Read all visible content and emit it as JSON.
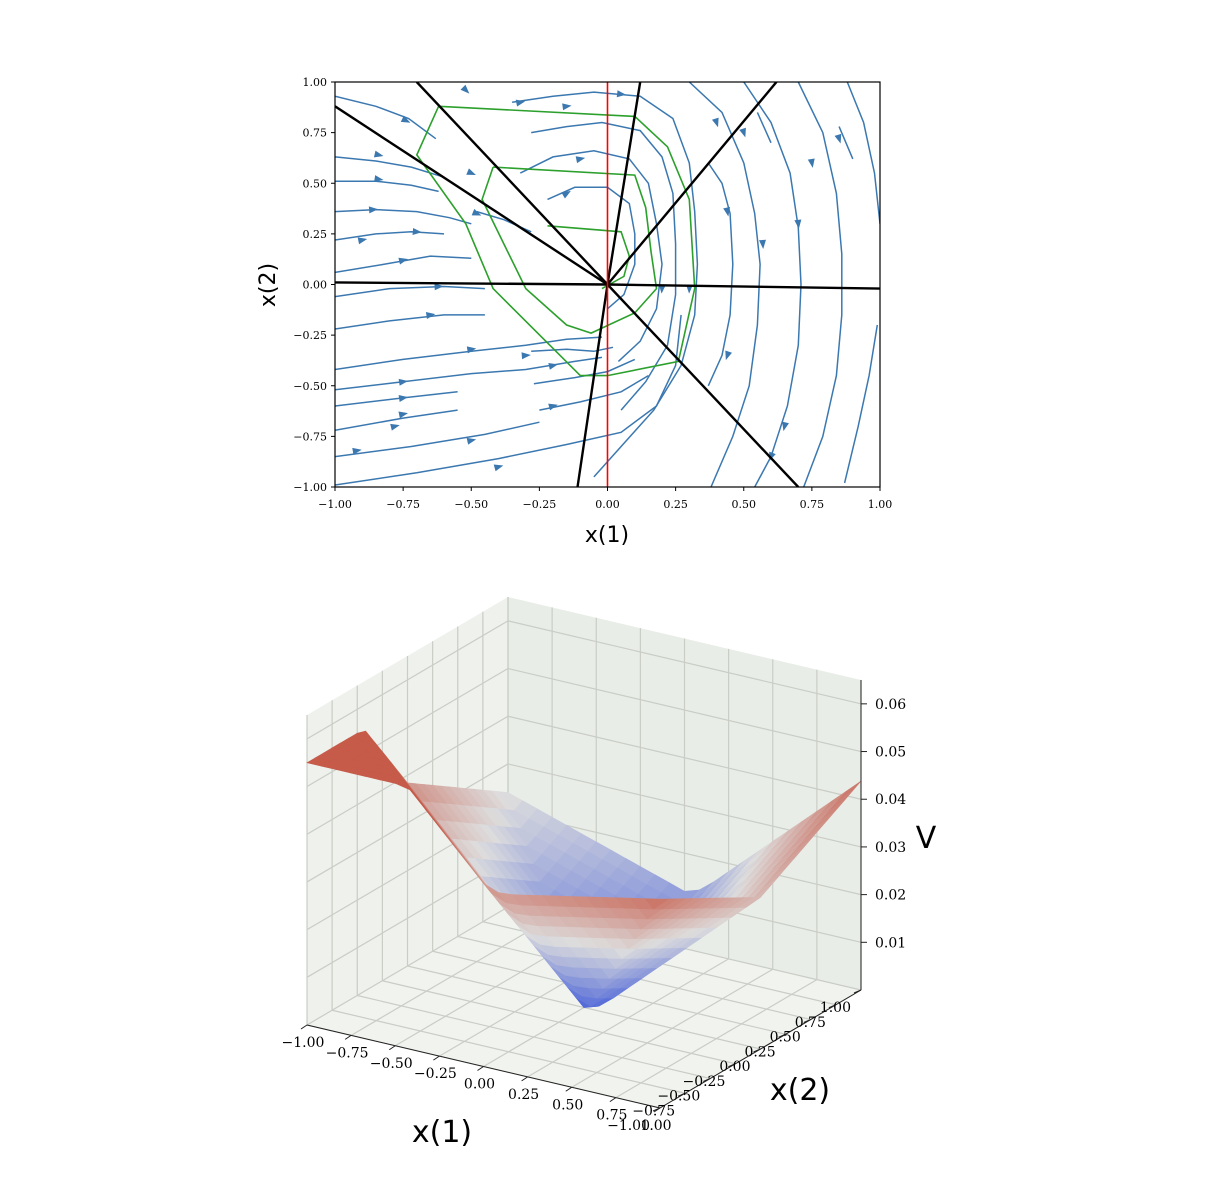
{
  "colors": {
    "streamline": "#3b78b0",
    "region_boundary": "#000000",
    "level_set": "#2ca02c",
    "switching_line": "#ff0000",
    "pane": "#eef1ec",
    "grid": "#c9cdc6",
    "surface_low": "#4a63d8",
    "surface_high": "#c65b4a"
  },
  "chart_data": [
    {
      "type": "streamplot",
      "xlabel": "x(1)",
      "ylabel": "x(2)",
      "xlim": [
        -1.0,
        1.0
      ],
      "ylim": [
        -1.0,
        1.0
      ],
      "xticks": [
        "-1.00",
        "-0.75",
        "-0.50",
        "-0.25",
        "0.00",
        "0.25",
        "0.50",
        "0.75",
        "1.00"
      ],
      "yticks": [
        "-1.00",
        "-0.75",
        "-0.50",
        "-0.25",
        "0.00",
        "0.25",
        "0.50",
        "0.75",
        "1.00"
      ],
      "tick_values": [
        -1.0,
        -0.75,
        -0.5,
        -0.25,
        0.0,
        0.25,
        0.5,
        0.75,
        1.0
      ],
      "grid": false,
      "boundary_rays_endpoints": [
        [
          -1.0,
          0.88
        ],
        [
          -0.7,
          1.0
        ],
        [
          0.12,
          1.0
        ],
        [
          0.62,
          1.0
        ],
        [
          1.0,
          -0.02
        ],
        [
          0.7,
          -1.0
        ],
        [
          -0.11,
          -1.0
        ],
        [
          -1.0,
          0.01
        ]
      ],
      "switching_line_x": 0.0,
      "level_sets": [
        [
          [
            -0.62,
            0.88
          ],
          [
            0.1,
            0.83
          ],
          [
            0.22,
            0.68
          ],
          [
            0.3,
            0.42
          ],
          [
            0.32,
            -0.02
          ],
          [
            0.26,
            -0.38
          ],
          [
            0.0,
            -0.45
          ],
          [
            -0.1,
            -0.45
          ],
          [
            -0.42,
            -0.02
          ],
          [
            -0.52,
            0.3
          ],
          [
            -0.7,
            0.64
          ],
          [
            -0.62,
            0.88
          ]
        ],
        [
          [
            -0.42,
            0.58
          ],
          [
            0.1,
            0.54
          ],
          [
            0.14,
            0.38
          ],
          [
            0.16,
            0.16
          ],
          [
            0.18,
            -0.02
          ],
          [
            0.1,
            -0.14
          ],
          [
            -0.06,
            -0.24
          ],
          [
            -0.15,
            -0.2
          ],
          [
            -0.3,
            -0.02
          ],
          [
            -0.38,
            0.2
          ],
          [
            -0.46,
            0.42
          ],
          [
            -0.42,
            0.58
          ]
        ],
        [
          [
            -0.22,
            0.29
          ],
          [
            0.05,
            0.26
          ],
          [
            0.08,
            0.14
          ],
          [
            0.06,
            0.04
          ],
          [
            -0.02,
            -0.02
          ]
        ]
      ],
      "streamlines": [
        [
          [
            -1.0,
            0.93
          ],
          [
            -0.85,
            0.88
          ],
          [
            -0.73,
            0.82
          ],
          [
            -0.63,
            0.72
          ]
        ],
        [
          [
            -1.0,
            0.63
          ],
          [
            -0.85,
            0.61
          ],
          [
            -0.72,
            0.58
          ],
          [
            -0.6,
            0.53
          ]
        ],
        [
          [
            -1.0,
            0.51
          ],
          [
            -0.85,
            0.51
          ],
          [
            -0.72,
            0.49
          ],
          [
            -0.62,
            0.46
          ]
        ],
        [
          [
            -1.0,
            0.36
          ],
          [
            -0.85,
            0.37
          ],
          [
            -0.7,
            0.36
          ],
          [
            -0.58,
            0.33
          ],
          [
            -0.5,
            0.3
          ]
        ],
        [
          [
            -1.0,
            0.22
          ],
          [
            -0.85,
            0.25
          ],
          [
            -0.72,
            0.26
          ],
          [
            -0.6,
            0.25
          ]
        ],
        [
          [
            -1.0,
            0.06
          ],
          [
            -0.82,
            0.1
          ],
          [
            -0.65,
            0.14
          ],
          [
            -0.5,
            0.13
          ]
        ],
        [
          [
            -1.0,
            -0.06
          ],
          [
            -0.8,
            -0.02
          ],
          [
            -0.6,
            -0.01
          ],
          [
            -0.45,
            -0.02
          ]
        ],
        [
          [
            -1.0,
            -0.22
          ],
          [
            -0.8,
            -0.18
          ],
          [
            -0.6,
            -0.15
          ],
          [
            -0.45,
            -0.15
          ]
        ],
        [
          [
            -1.0,
            -0.42
          ],
          [
            -0.75,
            -0.37
          ],
          [
            -0.5,
            -0.33
          ],
          [
            -0.3,
            -0.3
          ],
          [
            -0.15,
            -0.27
          ],
          [
            -0.02,
            -0.26
          ]
        ],
        [
          [
            -1.0,
            -0.52
          ],
          [
            -0.75,
            -0.48
          ],
          [
            -0.5,
            -0.44
          ],
          [
            -0.3,
            -0.42
          ],
          [
            -0.12,
            -0.38
          ],
          [
            -0.02,
            -0.36
          ]
        ],
        [
          [
            -1.0,
            -0.6
          ],
          [
            -0.75,
            -0.56
          ],
          [
            -0.55,
            -0.53
          ]
        ],
        [
          [
            -1.0,
            -0.72
          ],
          [
            -0.75,
            -0.66
          ],
          [
            -0.55,
            -0.62
          ]
        ],
        [
          [
            -1.0,
            -0.85
          ],
          [
            -0.72,
            -0.8
          ],
          [
            -0.45,
            -0.74
          ],
          [
            -0.25,
            -0.68
          ]
        ],
        [
          [
            -1.0,
            -0.99
          ],
          [
            -0.7,
            -0.93
          ],
          [
            -0.4,
            -0.86
          ],
          [
            -0.15,
            -0.79
          ],
          [
            0.05,
            -0.73
          ],
          [
            0.18,
            -0.6
          ],
          [
            0.25,
            -0.4
          ],
          [
            0.27,
            -0.15
          ]
        ],
        [
          [
            -0.28,
            -0.33
          ],
          [
            -0.15,
            -0.32
          ],
          [
            -0.05,
            -0.33
          ],
          [
            0.02,
            -0.31
          ]
        ],
        [
          [
            -0.27,
            -0.49
          ],
          [
            -0.12,
            -0.46
          ],
          [
            0.0,
            -0.43
          ],
          [
            0.1,
            -0.37
          ]
        ],
        [
          [
            -0.25,
            -0.62
          ],
          [
            -0.1,
            -0.58
          ],
          [
            0.05,
            -0.53
          ],
          [
            0.15,
            -0.45
          ]
        ],
        [
          [
            -0.48,
            0.36
          ],
          [
            -0.38,
            0.32
          ],
          [
            -0.28,
            0.26
          ]
        ],
        [
          [
            -0.35,
            0.9
          ],
          [
            -0.2,
            0.93
          ],
          [
            -0.05,
            0.95
          ],
          [
            0.12,
            0.93
          ],
          [
            0.24,
            0.82
          ],
          [
            0.3,
            0.6
          ],
          [
            0.32,
            0.36
          ],
          [
            0.33,
            0.1
          ],
          [
            0.32,
            -0.15
          ],
          [
            0.27,
            -0.4
          ],
          [
            0.17,
            -0.62
          ],
          [
            0.05,
            -0.8
          ],
          [
            -0.05,
            -0.95
          ]
        ],
        [
          [
            -0.28,
            0.75
          ],
          [
            -0.15,
            0.78
          ],
          [
            -0.02,
            0.8
          ],
          [
            0.12,
            0.76
          ],
          [
            0.2,
            0.63
          ],
          [
            0.24,
            0.45
          ],
          [
            0.25,
            0.2
          ],
          [
            0.25,
            -0.05
          ],
          [
            0.22,
            -0.3
          ],
          [
            0.14,
            -0.48
          ],
          [
            0.05,
            -0.62
          ]
        ],
        [
          [
            -0.32,
            0.55
          ],
          [
            -0.2,
            0.63
          ],
          [
            -0.05,
            0.66
          ],
          [
            0.08,
            0.62
          ],
          [
            0.15,
            0.5
          ],
          [
            0.18,
            0.3
          ],
          [
            0.2,
            0.1
          ],
          [
            0.18,
            -0.12
          ],
          [
            0.12,
            -0.28
          ],
          [
            0.04,
            -0.38
          ]
        ],
        [
          [
            -0.22,
            0.42
          ],
          [
            -0.12,
            0.48
          ],
          [
            0.0,
            0.48
          ],
          [
            0.08,
            0.4
          ],
          [
            0.1,
            0.25
          ],
          [
            0.1,
            0.1
          ],
          [
            0.06,
            -0.05
          ],
          [
            0.0,
            -0.12
          ]
        ],
        [
          [
            0.3,
            1.0
          ],
          [
            0.42,
            0.85
          ],
          [
            0.5,
            0.6
          ],
          [
            0.54,
            0.35
          ],
          [
            0.56,
            0.1
          ],
          [
            0.55,
            -0.2
          ],
          [
            0.52,
            -0.5
          ],
          [
            0.46,
            -0.75
          ],
          [
            0.38,
            -1.0
          ]
        ],
        [
          [
            0.5,
            1.0
          ],
          [
            0.6,
            0.8
          ],
          [
            0.67,
            0.55
          ],
          [
            0.7,
            0.28
          ],
          [
            0.71,
            0.0
          ],
          [
            0.7,
            -0.3
          ],
          [
            0.66,
            -0.6
          ],
          [
            0.6,
            -0.85
          ],
          [
            0.54,
            -1.0
          ]
        ],
        [
          [
            0.7,
            1.0
          ],
          [
            0.79,
            0.75
          ],
          [
            0.84,
            0.45
          ],
          [
            0.86,
            0.15
          ],
          [
            0.86,
            -0.15
          ],
          [
            0.84,
            -0.45
          ],
          [
            0.79,
            -0.75
          ],
          [
            0.72,
            -1.0
          ]
        ],
        [
          [
            0.88,
            1.0
          ],
          [
            0.94,
            0.8
          ],
          [
            0.98,
            0.55
          ],
          [
            1.0,
            0.3
          ]
        ],
        [
          [
            0.87,
            -0.98
          ],
          [
            0.92,
            -0.7
          ],
          [
            0.96,
            -0.45
          ],
          [
            0.99,
            -0.2
          ]
        ],
        [
          [
            0.37,
            0.6
          ],
          [
            0.42,
            0.5
          ],
          [
            0.45,
            0.35
          ],
          [
            0.46,
            0.1
          ],
          [
            0.45,
            -0.15
          ],
          [
            0.42,
            -0.35
          ],
          [
            0.37,
            -0.5
          ]
        ],
        [
          [
            0.55,
            0.85
          ],
          [
            0.6,
            0.7
          ]
        ],
        [
          [
            0.85,
            0.78
          ],
          [
            0.9,
            0.62
          ]
        ]
      ],
      "arrows": [
        [
          -0.74,
          0.81
        ],
        [
          -0.52,
          0.96
        ],
        [
          -0.32,
          0.9
        ],
        [
          -0.15,
          0.88
        ],
        [
          0.05,
          0.94
        ],
        [
          0.4,
          0.8
        ],
        [
          0.85,
          0.72
        ],
        [
          -0.84,
          0.64
        ],
        [
          -0.84,
          0.52
        ],
        [
          -0.5,
          0.55
        ],
        [
          -0.1,
          0.62
        ],
        [
          -0.15,
          0.45
        ],
        [
          -0.86,
          0.37
        ],
        [
          -0.9,
          0.22
        ],
        [
          -0.7,
          0.26
        ],
        [
          -0.75,
          0.12
        ],
        [
          -0.48,
          0.35
        ],
        [
          -0.62,
          -0.01
        ],
        [
          -0.65,
          -0.15
        ],
        [
          -0.75,
          -0.48
        ],
        [
          -0.75,
          -0.56
        ],
        [
          -0.75,
          -0.64
        ],
        [
          -0.78,
          -0.7
        ],
        [
          -0.92,
          -0.82
        ],
        [
          -0.5,
          -0.32
        ],
        [
          -0.5,
          -0.77
        ],
        [
          -0.4,
          -0.9
        ],
        [
          -0.2,
          -0.4
        ],
        [
          -0.2,
          -0.6
        ],
        [
          -0.3,
          -0.35
        ],
        [
          0.7,
          0.3
        ],
        [
          0.57,
          0.2
        ],
        [
          0.44,
          0.36
        ],
        [
          0.44,
          -0.35
        ],
        [
          0.3,
          -0.02
        ],
        [
          0.2,
          -0.02
        ],
        [
          0.75,
          0.6
        ],
        [
          0.6,
          -0.85
        ],
        [
          0.65,
          -0.7
        ],
        [
          0.5,
          0.75
        ]
      ]
    },
    {
      "type": "surface3d",
      "xlabel": "x(1)",
      "ylabel": "x(2)",
      "zlabel": "V",
      "xlim": [
        -1.0,
        1.0
      ],
      "ylim": [
        -1.0,
        1.0
      ],
      "zlim": [
        0.0,
        0.065
      ],
      "xticks": [
        "-1.00",
        "-0.75",
        "-0.50",
        "-0.25",
        "0.00",
        "0.25",
        "0.50",
        "0.75",
        "1.00"
      ],
      "yticks": [
        "-1.00",
        "-0.75",
        "-0.50",
        "-0.25",
        "0.00",
        "0.25",
        "0.50",
        "0.75",
        "1.00"
      ],
      "zticks": [
        "0.01",
        "0.02",
        "0.03",
        "0.04",
        "0.05",
        "0.06"
      ],
      "tick_values": [
        -1.0,
        -0.75,
        -0.5,
        -0.25,
        0.0,
        0.25,
        0.5,
        0.75,
        1.0
      ],
      "ztick_values": [
        0.01,
        0.02,
        0.03,
        0.04,
        0.05,
        0.06
      ],
      "grid": true,
      "colormap": "coolwarm",
      "surface_max_value": 0.055,
      "surface_min_value": 0.0,
      "surface_minimum_at": [
        0.0,
        0.0
      ]
    }
  ]
}
